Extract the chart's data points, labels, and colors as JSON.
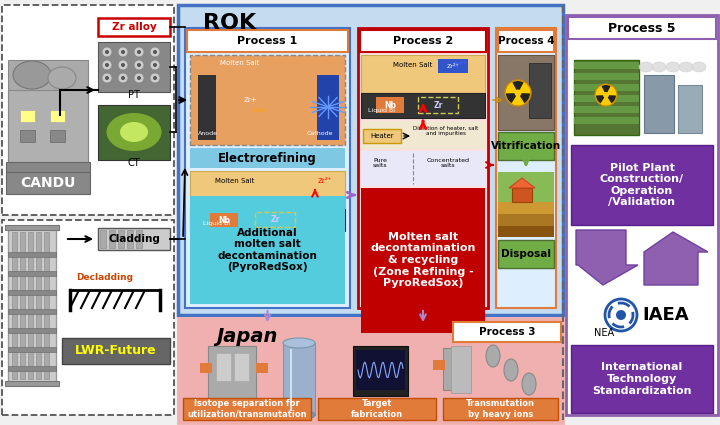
{
  "bg_color": "#f0f0f0",
  "left_section": {
    "candu_label": "CANDU",
    "pt_label": "PT",
    "ct_label": "CT",
    "zr_alloy_label": "Zr alloy",
    "lwr_label": "LWR-Future",
    "cladding_label": "Cladding",
    "decladding_label": "Decladding"
  },
  "rok_section": {
    "title": "ROK",
    "bg_color": "#c5dcf0",
    "border_color": "#4472c4",
    "process1_title": "Process 1",
    "process1_border": "#e07b39",
    "electrorefining_label": "Electrorefining",
    "additional_label": "Additional\nmolten salt\ndecontamination\n(PyroRedSox)",
    "process2_title": "Process 2",
    "process2_border": "#c00000",
    "molten_salt_label": "Molten salt\ndecontamination\n& recycling\n(Zone Refining -\nPyroRedSox)",
    "process4_title": "Process 4",
    "process4_border": "#e07b39",
    "vitrification_label": "Vitrification",
    "disposal_label": "Disposal"
  },
  "japan_section": {
    "title": "Japan",
    "bg_color": "#f0b0b0",
    "process3_title": "Process 3",
    "box1_label": "Isotope separation for\nutilization/transmutation",
    "box2_label": "Target\nfabrication",
    "box3_label": "Transmutation\nby heavy ions",
    "box_color": "#e07b39"
  },
  "process5_section": {
    "title": "Process 5",
    "border_color": "#9060b0",
    "pilot_label": "Pilot Plant\nConstruction/\nOperation\n/Validation",
    "pilot_color": "#7030a0",
    "iaea_label": "IAEA",
    "nea_label": "NEA",
    "intl_label": "International\nTechnology\nStandardization",
    "intl_color": "#7030a0"
  }
}
